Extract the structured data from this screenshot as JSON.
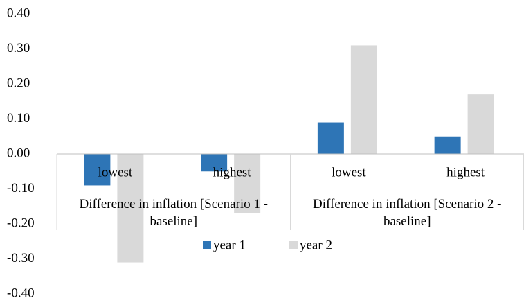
{
  "chart_data": {
    "type": "bar",
    "categories": [
      "lowest",
      "highest",
      "lowest",
      "highest"
    ],
    "category_groups": [
      "Difference in inflation [Scenario 1 - baseline]",
      "Difference in inflation [Scenario 2 - baseline]"
    ],
    "series": [
      {
        "name": "year 1",
        "color": "#2e75b6",
        "values": [
          -0.09,
          -0.05,
          0.09,
          0.05
        ]
      },
      {
        "name": "year 2",
        "color": "#d9d9d9",
        "values": [
          -0.31,
          -0.17,
          0.31,
          0.17
        ]
      }
    ],
    "ylim": [
      -0.4,
      0.4
    ],
    "yticks": [
      {
        "value": -0.4,
        "label": "-0.40"
      },
      {
        "value": -0.3,
        "label": "-0.30"
      },
      {
        "value": -0.2,
        "label": "-0.20"
      },
      {
        "value": -0.1,
        "label": "-0.10"
      },
      {
        "value": 0,
        "label": "0.00"
      },
      {
        "value": 0.1,
        "label": "0.10"
      },
      {
        "value": 0.2,
        "label": "0.20"
      },
      {
        "value": 0.3,
        "label": "0.30"
      },
      {
        "value": 0.4,
        "label": "0.40"
      }
    ],
    "grid": false,
    "legend": "bottom"
  }
}
